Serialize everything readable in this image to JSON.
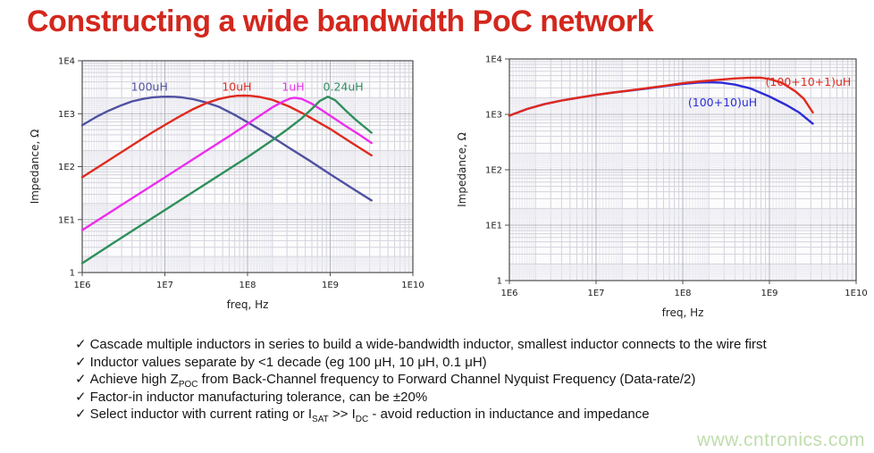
{
  "title": "Constructing a wide bandwidth PoC network",
  "watermark": "www.cntronics.com",
  "check_glyph": "✓",
  "colors": {
    "title": "#d3271d",
    "watermark": "#c0ddae",
    "text": "#151515"
  },
  "bullets": [
    {
      "parts": [
        {
          "t": "Cascade multiple inductors in series to build a wide-bandwidth inductor, smallest inductor connects to the wire first"
        }
      ]
    },
    {
      "parts": [
        {
          "t": "Inductor values separate by <1 decade (eg 100 μH, 10 μH, 0.1 μH)"
        }
      ]
    },
    {
      "parts": [
        {
          "t": "Achieve high Z"
        },
        {
          "t": "POC",
          "sub": true
        },
        {
          "t": " from Back-Channel frequency to Forward Channel Nyquist Frequency (Data-rate/2)"
        }
      ]
    },
    {
      "parts": [
        {
          "t": "Factor-in inductor manufacturing tolerance, can be ±20%"
        }
      ]
    },
    {
      "parts": [
        {
          "t": "Select inductor with current rating or I"
        },
        {
          "t": "SAT",
          "sub": true
        },
        {
          "t": " >> I"
        },
        {
          "t": "DC",
          "sub": true
        },
        {
          "t": " - avoid reduction in inductance and impedance"
        }
      ]
    }
  ],
  "chart_data": [
    {
      "type": "line",
      "xscale": "log",
      "yscale": "log",
      "xlabel": "freq, Hz",
      "ylabel": "Impedance, Ω",
      "xlim": [
        1000000.0,
        10000000000.0
      ],
      "ylim": [
        1,
        10000.0
      ],
      "grid": true,
      "xticks": [
        {
          "v": 1000000.0,
          "label": "1E6"
        },
        {
          "v": 10000000.0,
          "label": "1E7"
        },
        {
          "v": 100000000.0,
          "label": "1E8"
        },
        {
          "v": 1000000000.0,
          "label": "1E9"
        },
        {
          "v": 10000000000.0,
          "label": "1E10"
        }
      ],
      "yticks": [
        {
          "v": 1,
          "label": "1"
        },
        {
          "v": 10,
          "label": "1E1"
        },
        {
          "v": 100,
          "label": "1E2"
        },
        {
          "v": 1000,
          "label": "1E3"
        },
        {
          "v": 10000,
          "label": "1E4"
        }
      ],
      "series": [
        {
          "name": "100uH",
          "color": "#5151a3",
          "label": {
            "x": 3900000.0,
            "y": 2700
          },
          "points": [
            [
              1000000.0,
              606
            ],
            [
              1500000.0,
              880
            ],
            [
              2000000.0,
              1106
            ],
            [
              3000000.0,
              1450
            ],
            [
              4000000.0,
              1704
            ],
            [
              5500000.0,
              1910
            ],
            [
              7000000.0,
              2024
            ],
            [
              9000000.0,
              2088
            ],
            [
              10700000.0,
              2100
            ],
            [
              13000000.0,
              2085
            ],
            [
              16000000.0,
              2032
            ],
            [
              22000000.0,
              1880
            ],
            [
              31600000.0,
              1629
            ],
            [
              45000000.0,
              1350
            ],
            [
              70000000.0,
              950
            ],
            [
              100000000.0,
              691
            ],
            [
              180000000.0,
              400
            ],
            [
              316000000.0,
              229
            ],
            [
              560000000.0,
              130
            ],
            [
              1000000000.0,
              72
            ],
            [
              1800000000.0,
              40
            ],
            [
              3160000000.0,
              23
            ]
          ]
        },
        {
          "name": "10uH",
          "color": "#e02a1e",
          "label": {
            "x": 49000000.0,
            "y": 2700
          },
          "points": [
            [
              1000000.0,
              63
            ],
            [
              2000000.0,
              126
            ],
            [
              4000000.0,
              251
            ],
            [
              7000000.0,
              440
            ],
            [
              10000000.0,
              611
            ],
            [
              15000000.0,
              886
            ],
            [
              22000000.0,
              1222
            ],
            [
              31600000.0,
              1577
            ],
            [
              45000000.0,
              1897
            ],
            [
              60000000.0,
              2090
            ],
            [
              75000000.0,
              2180
            ],
            [
              90000000.0,
              2200
            ],
            [
              110000000.0,
              2170
            ],
            [
              140000000.0,
              2074
            ],
            [
              200000000.0,
              1830
            ],
            [
              316000000.0,
              1377
            ],
            [
              500000000.0,
              956
            ],
            [
              700000000.0,
              706
            ],
            [
              1000000000.0,
              516
            ],
            [
              1800000000.0,
              285
            ],
            [
              3160000000.0,
              163
            ]
          ]
        },
        {
          "name": "1uH",
          "color": "#ee2dee",
          "label": {
            "x": 260000000.0,
            "y": 2700
          },
          "points": [
            [
              1000000.0,
              6.3
            ],
            [
              3160000.0,
              19.9
            ],
            [
              10000000.0,
              62.8
            ],
            [
              31600000.0,
              198
            ],
            [
              60000000.0,
              376
            ],
            [
              100000000.0,
              640
            ],
            [
              150000000.0,
              979
            ],
            [
              200000000.0,
              1319
            ],
            [
              270000000.0,
              1700
            ],
            [
              330000000.0,
              1950
            ],
            [
              375000000.0,
              2000
            ],
            [
              450000000.0,
              1910
            ],
            [
              600000000.0,
              1541
            ],
            [
              800000000.0,
              1156
            ],
            [
              1000000000.0,
              915
            ],
            [
              1500000000.0,
              600
            ],
            [
              2200000000.0,
              412
            ],
            [
              3160000000.0,
              280
            ]
          ]
        },
        {
          "name": "0.24uH",
          "color": "#2f8f5b",
          "label": {
            "x": 820000000.0,
            "y": 2700
          },
          "points": [
            [
              1000000.0,
              1.5
            ],
            [
              3160000.0,
              4.8
            ],
            [
              10000000.0,
              15.1
            ],
            [
              31600000.0,
              47.7
            ],
            [
              100000000.0,
              151
            ],
            [
              200000000.0,
              316
            ],
            [
              316000000.0,
              530
            ],
            [
              450000000.0,
              813
            ],
            [
              600000000.0,
              1238
            ],
            [
              750000000.0,
              1745
            ],
            [
              940000000.0,
              2100
            ],
            [
              1150000000.0,
              1792
            ],
            [
              1500000000.0,
              1194
            ],
            [
              2000000000.0,
              786
            ],
            [
              3160000000.0,
              438
            ]
          ]
        }
      ]
    },
    {
      "type": "line",
      "xscale": "log",
      "yscale": "log",
      "xlabel": "freq, Hz",
      "ylabel": "Impedance, Ω",
      "xlim": [
        1000000.0,
        10000000000.0
      ],
      "ylim": [
        1,
        10000.0
      ],
      "grid": true,
      "xticks": [
        {
          "v": 1000000.0,
          "label": "1E6"
        },
        {
          "v": 10000000.0,
          "label": "1E7"
        },
        {
          "v": 100000000.0,
          "label": "1E8"
        },
        {
          "v": 1000000000.0,
          "label": "1E9"
        },
        {
          "v": 10000000000.0,
          "label": "1E10"
        }
      ],
      "yticks": [
        {
          "v": 1,
          "label": "1"
        },
        {
          "v": 10,
          "label": "1E1"
        },
        {
          "v": 100,
          "label": "1E2"
        },
        {
          "v": 1000,
          "label": "1E3"
        },
        {
          "v": 10000,
          "label": "1E4"
        }
      ],
      "series": [
        {
          "name": "(100+10)uH",
          "color": "#2c2cd8",
          "label": {
            "x": 115000000.0,
            "y": 1400
          },
          "points": [
            [
              1000000.0,
              950
            ],
            [
              1600000.0,
              1250
            ],
            [
              2500000.0,
              1520
            ],
            [
              4000000.0,
              1780
            ],
            [
              6300000.0,
              2000
            ],
            [
              10000000.0,
              2250
            ],
            [
              16000000.0,
              2480
            ],
            [
              25000000.0,
              2700
            ],
            [
              40000000.0,
              2950
            ],
            [
              63000000.0,
              3250
            ],
            [
              100000000.0,
              3550
            ],
            [
              150000000.0,
              3750
            ],
            [
              200000000.0,
              3800
            ],
            [
              280000000.0,
              3720
            ],
            [
              400000000.0,
              3450
            ],
            [
              600000000.0,
              2950
            ],
            [
              1000000000.0,
              2100
            ],
            [
              1600000000.0,
              1450
            ],
            [
              2200000000.0,
              1080
            ],
            [
              3160000000.0,
              680
            ]
          ]
        },
        {
          "name": "(100+10+1)uH",
          "color": "#e02a1e",
          "label": {
            "x": 900000000.0,
            "y": 3300
          },
          "points": [
            [
              1000000.0,
              950
            ],
            [
              1600000.0,
              1250
            ],
            [
              2500000.0,
              1520
            ],
            [
              4000000.0,
              1780
            ],
            [
              6300000.0,
              2000
            ],
            [
              10000000.0,
              2250
            ],
            [
              16000000.0,
              2480
            ],
            [
              25000000.0,
              2720
            ],
            [
              40000000.0,
              3000
            ],
            [
              63000000.0,
              3300
            ],
            [
              100000000.0,
              3650
            ],
            [
              160000000.0,
              3950
            ],
            [
              250000000.0,
              4200
            ],
            [
              400000000.0,
              4450
            ],
            [
              600000000.0,
              4600
            ],
            [
              800000000.0,
              4580
            ],
            [
              1000000000.0,
              4350
            ],
            [
              1400000000.0,
              3700
            ],
            [
              2000000000.0,
              2600
            ],
            [
              2500000000.0,
              1900
            ],
            [
              3160000000.0,
              1080
            ]
          ]
        }
      ]
    }
  ]
}
